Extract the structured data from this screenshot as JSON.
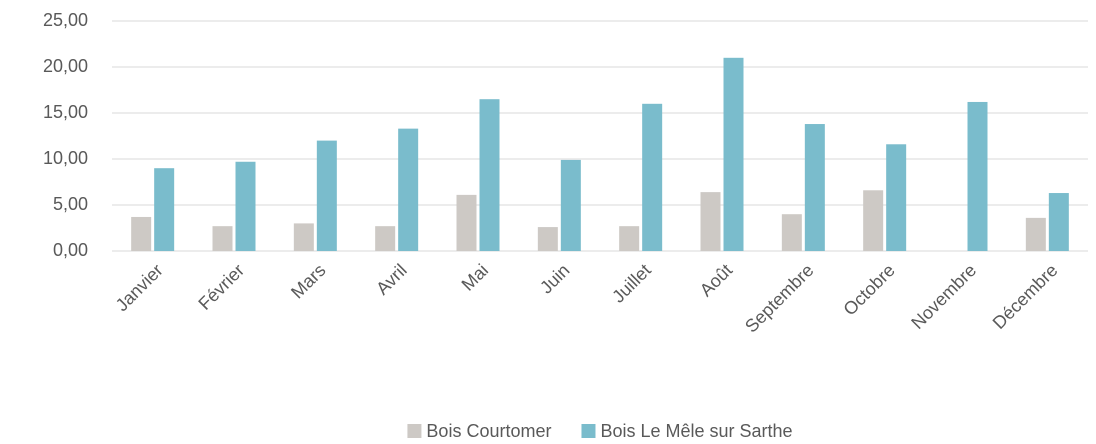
{
  "chart_data": {
    "type": "bar",
    "categories": [
      "Janvier",
      "Février",
      "Mars",
      "Avril",
      "Mai",
      "Juin",
      "Juillet",
      "Août",
      "Septembre",
      "Octobre",
      "Novembre",
      "Décembre"
    ],
    "series": [
      {
        "name": "Bois Courtomer",
        "color": "#cdc9c5",
        "values": [
          3.7,
          2.7,
          3.0,
          2.7,
          6.1,
          2.6,
          2.7,
          6.4,
          4.0,
          6.6,
          null,
          3.6
        ]
      },
      {
        "name": "Bois Le Mêle sur Sarthe",
        "color": "#7abccc",
        "values": [
          9.0,
          9.7,
          12.0,
          13.3,
          16.5,
          9.9,
          16.0,
          21.0,
          13.8,
          11.6,
          16.2,
          6.3
        ]
      }
    ],
    "ylim": [
      0,
      25
    ],
    "yticks": [
      {
        "value": 0,
        "label": "0,00"
      },
      {
        "value": 5,
        "label": "5,00"
      },
      {
        "value": 10,
        "label": "10,00"
      },
      {
        "value": 15,
        "label": "15,00"
      },
      {
        "value": 20,
        "label": "20,00"
      },
      {
        "value": 25,
        "label": "25,00"
      }
    ],
    "grid": true
  }
}
